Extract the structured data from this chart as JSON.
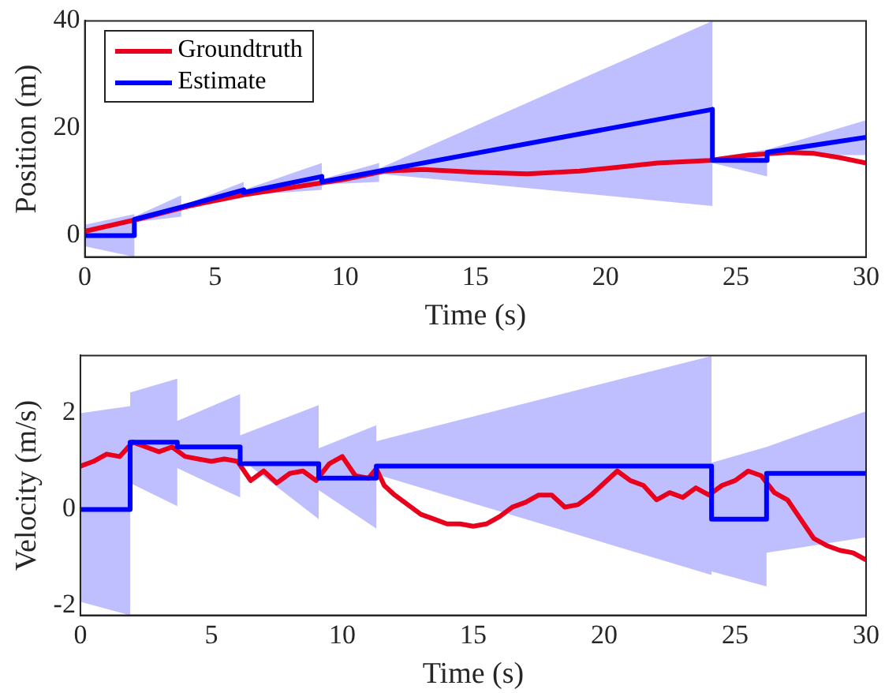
{
  "chart_data": [
    {
      "type": "line",
      "xlabel": "Time (s)",
      "ylabel": "Position (m)",
      "xlim": [
        0,
        30
      ],
      "xticks": [
        0,
        5,
        10,
        15,
        20,
        25,
        30
      ],
      "ylim": [
        -4,
        40
      ],
      "yticks": [
        0,
        20,
        40
      ],
      "legend": "top left",
      "grid": false,
      "marker": "none",
      "line_style": "solid",
      "series": [
        {
          "name": "Groundtruth",
          "color": "#e8001c",
          "x": [
            0,
            2,
            4,
            6,
            8,
            10,
            11.5,
            13,
            15,
            17,
            19,
            20,
            22,
            24,
            25.5,
            27,
            28,
            29,
            30
          ],
          "values": [
            0.8,
            3,
            5.5,
            7.5,
            9,
            10.5,
            12,
            12.3,
            11.8,
            11.5,
            12,
            12.5,
            13.5,
            14,
            15,
            15.5,
            15.3,
            14.5,
            13.5
          ]
        },
        {
          "name": "Estimate",
          "color": "#0000ff",
          "x": [
            0,
            1.9,
            1.9,
            3.7,
            3.7,
            6.1,
            6.1,
            9.1,
            9.1,
            11.3,
            11.3,
            24.1,
            24.1,
            26.2,
            26.2,
            30
          ],
          "values": [
            0,
            0,
            3,
            5.3,
            5.3,
            8.5,
            8,
            11,
            10,
            12,
            12,
            23.5,
            14,
            14,
            15.5,
            18.3
          ],
          "upper": [
            2,
            4,
            3.5,
            7.5,
            5.5,
            10,
            8.5,
            13.5,
            10.5,
            13.5,
            12.5,
            40,
            14.5,
            16,
            16,
            21.5
          ],
          "lower": [
            -2,
            -4,
            2.5,
            3.5,
            5,
            7,
            7.5,
            8.5,
            9.5,
            10,
            11.5,
            5.5,
            13.5,
            11,
            15,
            15
          ]
        }
      ]
    },
    {
      "type": "line",
      "xlabel": "Time (s)",
      "ylabel": "Velocity (m/s)",
      "xlim": [
        0,
        30
      ],
      "xticks": [
        0,
        5,
        10,
        15,
        20,
        25,
        30
      ],
      "ylim": [
        -2.2,
        3.2
      ],
      "yticks": [
        -2,
        0,
        2
      ],
      "legend": false,
      "grid": false,
      "marker": "none",
      "line_style": "solid",
      "series": [
        {
          "color": "#e8001c",
          "x": [
            0,
            0.5,
            1,
            1.5,
            2,
            2.5,
            3,
            3.5,
            4,
            4.5,
            5,
            5.5,
            6,
            6.5,
            7,
            7.5,
            8,
            8.5,
            9,
            9.5,
            10,
            10.5,
            11,
            11.3,
            11.6,
            12,
            12.5,
            13,
            13.5,
            14,
            14.5,
            15,
            15.5,
            16,
            16.5,
            17,
            17.5,
            18,
            18.5,
            19,
            19.5,
            20,
            20.5,
            21,
            21.5,
            22,
            22.5,
            23,
            23.5,
            24,
            24.5,
            25,
            25.5,
            26,
            26.5,
            27,
            27.5,
            28,
            28.5,
            29,
            29.5,
            30
          ],
          "values": [
            0.9,
            1,
            1.15,
            1.1,
            1.4,
            1.3,
            1.2,
            1.3,
            1.1,
            1.05,
            1,
            1.05,
            1,
            0.6,
            0.8,
            0.55,
            0.75,
            0.8,
            0.6,
            0.95,
            1.1,
            0.7,
            0.65,
            0.85,
            0.5,
            0.3,
            0.1,
            -0.1,
            -0.2,
            -0.3,
            -0.3,
            -0.35,
            -0.3,
            -0.15,
            0.05,
            0.15,
            0.3,
            0.3,
            0.05,
            0.1,
            0.3,
            0.55,
            0.8,
            0.6,
            0.5,
            0.2,
            0.35,
            0.25,
            0.45,
            0.3,
            0.5,
            0.6,
            0.8,
            0.7,
            0.35,
            0.2,
            -0.2,
            -0.6,
            -0.75,
            -0.85,
            -0.9,
            -1.05
          ]
        },
        {
          "color": "#0000ff",
          "x": [
            0,
            1.9,
            1.9,
            3.7,
            3.7,
            6.1,
            6.1,
            9.1,
            9.1,
            11.3,
            11.3,
            24.1,
            24.1,
            26.2,
            26.2,
            30
          ],
          "values": [
            0,
            0,
            1.4,
            1.4,
            1.3,
            1.3,
            0.95,
            0.95,
            0.65,
            0.65,
            0.9,
            0.9,
            -0.2,
            -0.2,
            0.75,
            0.75
          ],
          "upper": [
            2,
            2.15,
            2.43,
            2.72,
            1.84,
            2.4,
            1.54,
            2.17,
            1.27,
            1.75,
            1.42,
            3.19,
            0.97,
            1.3,
            1.3,
            2.04
          ],
          "lower": [
            -1.92,
            -2.2,
            0.55,
            0.07,
            0.86,
            0.25,
            1.06,
            -0.2,
            0.4,
            -0.4,
            0.73,
            -1.36,
            -1.29,
            -1.6,
            -0.9,
            -0.58
          ]
        }
      ]
    }
  ]
}
